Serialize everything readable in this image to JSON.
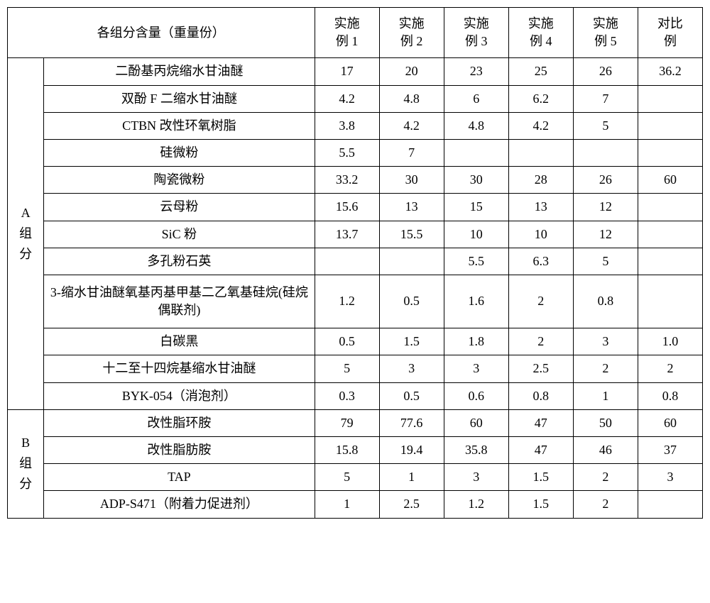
{
  "header": {
    "title": "各组分含量（重量份）",
    "cols": [
      "实施例 1",
      "实施例 2",
      "实施例 3",
      "实施例 4",
      "实施例 5",
      "对比例"
    ]
  },
  "groupA": {
    "label": "A 组分",
    "rows": [
      {
        "name": "二酚基丙烷缩水甘油醚",
        "v": [
          "17",
          "20",
          "23",
          "25",
          "26",
          "36.2"
        ]
      },
      {
        "name": "双酚 F 二缩水甘油醚",
        "v": [
          "4.2",
          "4.8",
          "6",
          "6.2",
          "7",
          ""
        ]
      },
      {
        "name": "CTBN 改性环氧树脂",
        "v": [
          "3.8",
          "4.2",
          "4.8",
          "4.2",
          "5",
          ""
        ]
      },
      {
        "name": "硅微粉",
        "v": [
          "5.5",
          "7",
          "",
          "",
          "",
          ""
        ]
      },
      {
        "name": "陶瓷微粉",
        "v": [
          "33.2",
          "30",
          "30",
          "28",
          "26",
          "60"
        ]
      },
      {
        "name": "云母粉",
        "v": [
          "15.6",
          "13",
          "15",
          "13",
          "12",
          ""
        ]
      },
      {
        "name": "SiC 粉",
        "v": [
          "13.7",
          "15.5",
          "10",
          "10",
          "12",
          ""
        ]
      },
      {
        "name": "多孔粉石英",
        "v": [
          "",
          "",
          "5.5",
          "6.3",
          "5",
          ""
        ]
      },
      {
        "name": "3-缩水甘油醚氧基丙基甲基二乙氧基硅烷(硅烷偶联剂)",
        "v": [
          "1.2",
          "0.5",
          "1.6",
          "2",
          "0.8",
          ""
        ]
      },
      {
        "name": "白碳黑",
        "v": [
          "0.5",
          "1.5",
          "1.8",
          "2",
          "3",
          "1.0"
        ]
      },
      {
        "name": "十二至十四烷基缩水甘油醚",
        "v": [
          "5",
          "3",
          "3",
          "2.5",
          "2",
          "2"
        ]
      },
      {
        "name": "BYK-054（消泡剂）",
        "v": [
          "0.3",
          "0.5",
          "0.6",
          "0.8",
          "1",
          "0.8"
        ]
      }
    ]
  },
  "groupB": {
    "label": "B 组分",
    "rows": [
      {
        "name": "改性脂环胺",
        "v": [
          "79",
          "77.6",
          "60",
          "47",
          "50",
          "60"
        ]
      },
      {
        "name": "改性脂肪胺",
        "v": [
          "15.8",
          "19.4",
          "35.8",
          "47",
          "46",
          "37"
        ]
      },
      {
        "name": "TAP",
        "v": [
          "5",
          "1",
          "3",
          "1.5",
          "2",
          "3"
        ]
      },
      {
        "name": "ADP-S471（附着力促进剂）",
        "v": [
          "1",
          "2.5",
          "1.2",
          "1.5",
          "2",
          ""
        ]
      }
    ]
  },
  "style": {
    "border_color": "#000000",
    "background": "#ffffff",
    "font_size": 18
  }
}
